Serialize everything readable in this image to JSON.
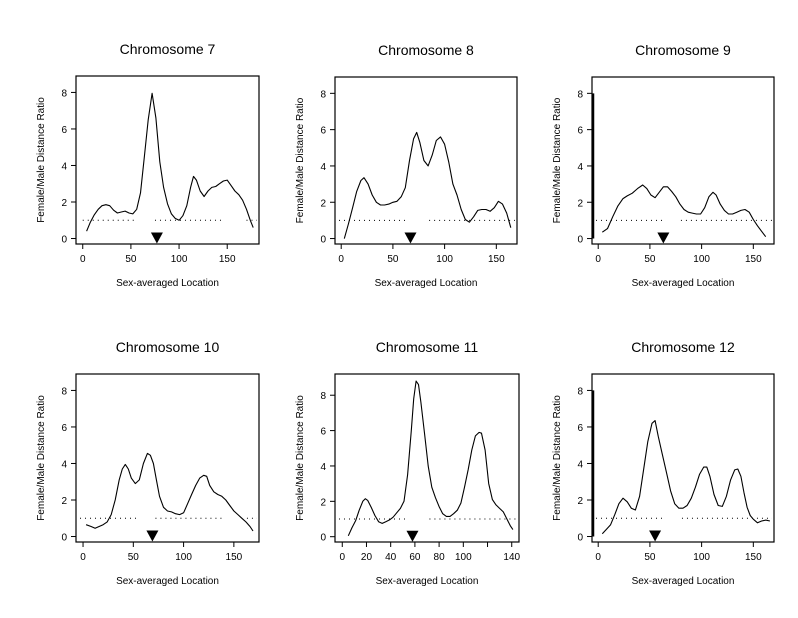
{
  "chart_data": [
    {
      "type": "line",
      "title": "Chromosome 7",
      "xlabel": "Sex-averaged Location",
      "ylabel": "Female/Male Distance Ratio",
      "xlim": [
        -7,
        183
      ],
      "ylim": [
        -0.3,
        8.9
      ],
      "xticks": [
        0,
        50,
        100,
        150
      ],
      "xtick_labels": [
        "0",
        "50",
        "100",
        "150"
      ],
      "yticks": [
        0,
        2,
        4,
        6,
        8
      ],
      "ytick_labels": [
        "0",
        "2",
        "4",
        "6",
        "8"
      ],
      "grid": false,
      "reference_line": {
        "y": 1,
        "style": "dotted",
        "segments": [
          [
            0,
            55
          ],
          [
            75,
            145
          ],
          [
            170,
            183
          ]
        ]
      },
      "marker": {
        "shape": "down-triangle",
        "x": 77
      },
      "x": [
        4,
        8,
        12,
        16,
        20,
        24,
        28,
        32,
        36,
        40,
        44,
        48,
        52,
        56,
        60,
        64,
        68,
        72,
        76,
        80,
        84,
        88,
        92,
        96,
        100,
        104,
        108,
        112,
        115,
        118,
        122,
        126,
        130,
        134,
        138,
        142,
        146,
        150,
        154,
        158,
        162,
        166,
        170,
        174,
        177
      ],
      "y": [
        0.4,
        0.9,
        1.3,
        1.6,
        1.8,
        1.85,
        1.8,
        1.55,
        1.4,
        1.45,
        1.5,
        1.4,
        1.35,
        1.6,
        2.5,
        4.5,
        6.5,
        7.95,
        6.6,
        4.2,
        2.8,
        1.9,
        1.35,
        1.1,
        1.0,
        1.25,
        1.8,
        2.8,
        3.4,
        3.2,
        2.6,
        2.3,
        2.6,
        2.8,
        2.85,
        3.0,
        3.15,
        3.2,
        2.9,
        2.6,
        2.4,
        2.1,
        1.6,
        1.0,
        0.6
      ]
    },
    {
      "type": "line",
      "title": "Chromosome 8",
      "xlabel": "Sex-averaged Location",
      "ylabel": "Female/Male Distance Ratio",
      "xlim": [
        -6,
        170
      ],
      "ylim": [
        -0.3,
        8.9
      ],
      "xticks": [
        0,
        50,
        100,
        150
      ],
      "xtick_labels": [
        "0",
        "50",
        "100",
        "150"
      ],
      "yticks": [
        0,
        2,
        4,
        6,
        8
      ],
      "ytick_labels": [
        "0",
        "2",
        "4",
        "6",
        "8"
      ],
      "grid": false,
      "reference_line": {
        "y": 1,
        "style": "dotted",
        "segments": [
          [
            -6,
            62
          ],
          [
            85,
            170
          ]
        ]
      },
      "marker": {
        "shape": "down-triangle",
        "x": 67
      },
      "x": [
        3,
        7,
        11,
        15,
        19,
        22,
        26,
        30,
        34,
        38,
        42,
        46,
        50,
        54,
        58,
        62,
        66,
        70,
        73,
        76,
        80,
        84,
        88,
        92,
        96,
        100,
        104,
        108,
        112,
        116,
        120,
        124,
        128,
        132,
        136,
        140,
        144,
        148,
        152,
        156,
        160,
        164
      ],
      "y": [
        0.0,
        0.8,
        1.7,
        2.6,
        3.2,
        3.35,
        3.0,
        2.4,
        2.0,
        1.85,
        1.85,
        1.9,
        2.0,
        2.05,
        2.3,
        2.8,
        4.3,
        5.5,
        5.85,
        5.3,
        4.3,
        4.0,
        4.6,
        5.4,
        5.6,
        5.2,
        4.2,
        3.0,
        2.4,
        1.6,
        1.05,
        0.9,
        1.2,
        1.55,
        1.6,
        1.6,
        1.5,
        1.7,
        2.05,
        1.9,
        1.4,
        0.6
      ]
    },
    {
      "type": "line",
      "title": "Chromosome 9",
      "xlabel": "Sex-averaged Location",
      "ylabel": "Female/Male Distance Ratio",
      "xlim": [
        -6,
        170
      ],
      "ylim": [
        -0.3,
        8.9
      ],
      "xticks": [
        0,
        50,
        100,
        150
      ],
      "xtick_labels": [
        "0",
        "50",
        "100",
        "150"
      ],
      "yticks": [
        0,
        2,
        4,
        6,
        8
      ],
      "ytick_labels": [
        "0",
        "2",
        "4",
        "6",
        "8"
      ],
      "grid": false,
      "reference_line": {
        "y": 1,
        "style": "dotted",
        "segments": [
          [
            -6,
            63
          ],
          [
            80,
            170
          ]
        ]
      },
      "marker": {
        "shape": "down-triangle",
        "x": 63
      },
      "x": [
        4,
        9,
        14,
        19,
        24,
        28,
        33,
        38,
        43,
        47,
        51,
        55,
        59,
        63,
        67,
        71,
        75,
        79,
        83,
        87,
        91,
        95,
        99,
        103,
        107,
        111,
        114,
        118,
        122,
        126,
        130,
        134,
        138,
        142,
        146,
        150,
        154,
        158,
        162
      ],
      "y": [
        0.35,
        0.55,
        1.2,
        1.8,
        2.2,
        2.35,
        2.5,
        2.75,
        2.95,
        2.75,
        2.4,
        2.25,
        2.55,
        2.85,
        2.85,
        2.6,
        2.3,
        1.9,
        1.6,
        1.45,
        1.4,
        1.35,
        1.35,
        1.7,
        2.3,
        2.55,
        2.4,
        1.9,
        1.55,
        1.35,
        1.35,
        1.45,
        1.55,
        1.6,
        1.45,
        1.05,
        0.7,
        0.4,
        0.1
      ]
    },
    {
      "type": "line",
      "title": "Chromosome 10",
      "xlabel": "Sex-averaged Location",
      "ylabel": "Female/Male Distance Ratio",
      "xlim": [
        -7,
        175
      ],
      "ylim": [
        -0.3,
        8.9
      ],
      "xticks": [
        0,
        50,
        100,
        150
      ],
      "xtick_labels": [
        "0",
        "50",
        "100",
        "150"
      ],
      "yticks": [
        0,
        2,
        4,
        6,
        8
      ],
      "ytick_labels": [
        "0",
        "2",
        "4",
        "6",
        "8"
      ],
      "grid": false,
      "reference_line": {
        "y": 1,
        "style": "dotted",
        "segments": [
          [
            -7,
            55
          ],
          [
            72,
            140
          ],
          [
            163,
            175
          ]
        ]
      },
      "marker": {
        "shape": "down-triangle",
        "x": 69
      },
      "x": [
        3,
        8,
        12,
        16,
        20,
        24,
        28,
        32,
        36,
        39,
        42,
        45,
        48,
        52,
        56,
        60,
        64,
        67,
        70,
        73,
        76,
        80,
        84,
        88,
        92,
        96,
        100,
        104,
        108,
        112,
        116,
        120,
        123,
        126,
        130,
        134,
        138,
        142,
        146,
        150,
        154,
        158,
        162,
        166,
        169
      ],
      "y": [
        0.65,
        0.55,
        0.45,
        0.55,
        0.65,
        0.8,
        1.2,
        2.0,
        3.1,
        3.7,
        3.95,
        3.7,
        3.2,
        2.9,
        3.1,
        4.0,
        4.55,
        4.45,
        4.0,
        3.1,
        2.2,
        1.6,
        1.4,
        1.35,
        1.25,
        1.2,
        1.3,
        1.8,
        2.3,
        2.8,
        3.2,
        3.35,
        3.3,
        2.8,
        2.45,
        2.3,
        2.2,
        2.0,
        1.7,
        1.4,
        1.2,
        1.0,
        0.8,
        0.55,
        0.3
      ]
    },
    {
      "type": "line",
      "title": "Chromosome 11",
      "xlabel": "Sex-averaged Location",
      "ylabel": "Female/Male Distance Ratio",
      "xlim": [
        -6,
        146
      ],
      "ylim": [
        -0.3,
        9.2
      ],
      "xticks": [
        0,
        20,
        40,
        60,
        80,
        100,
        120,
        140
      ],
      "xtick_labels": [
        "0",
        "20",
        "40",
        "60",
        "80",
        "100",
        "",
        "140"
      ],
      "yticks": [
        0,
        2,
        4,
        6,
        8
      ],
      "ytick_labels": [
        "0",
        "2",
        "4",
        "6",
        "8"
      ],
      "grid": false,
      "reference_line": {
        "y": 1,
        "style": "dotted",
        "segments": [
          [
            -6,
            53
          ],
          [
            72,
            146
          ]
        ]
      },
      "marker": {
        "shape": "down-triangle",
        "x": 58
      },
      "x": [
        5,
        8,
        11,
        14,
        17,
        19,
        21,
        24,
        27,
        30,
        33,
        36,
        39,
        42,
        45,
        48,
        51,
        54,
        57,
        59,
        61,
        63,
        65,
        68,
        71,
        74,
        77,
        80,
        83,
        86,
        89,
        92,
        95,
        98,
        101,
        104,
        107,
        110,
        113,
        115,
        118,
        121,
        124,
        127,
        130,
        133,
        136,
        139,
        141
      ],
      "y": [
        0.05,
        0.5,
        0.9,
        1.5,
        2.0,
        2.15,
        2.05,
        1.65,
        1.2,
        0.85,
        0.75,
        0.85,
        0.95,
        1.1,
        1.35,
        1.6,
        2.0,
        3.5,
        6.0,
        7.8,
        8.8,
        8.6,
        7.6,
        5.8,
        4.0,
        2.8,
        2.2,
        1.7,
        1.3,
        1.15,
        1.15,
        1.3,
        1.5,
        1.9,
        2.8,
        3.8,
        4.9,
        5.7,
        5.9,
        5.85,
        4.9,
        3.0,
        2.1,
        1.8,
        1.6,
        1.4,
        1.0,
        0.6,
        0.4
      ]
    },
    {
      "type": "line",
      "title": "Chromosome 12",
      "xlabel": "Sex-averaged Location",
      "ylabel": "Female/Male Distance Ratio",
      "xlim": [
        -6,
        170
      ],
      "ylim": [
        -0.3,
        8.9
      ],
      "xticks": [
        0,
        50,
        100,
        150
      ],
      "xtick_labels": [
        "0",
        "50",
        "100",
        "150"
      ],
      "yticks": [
        0,
        2,
        4,
        6,
        8
      ],
      "ytick_labels": [
        "0",
        "2",
        "4",
        "6",
        "8"
      ],
      "grid": false,
      "reference_line": {
        "y": 1,
        "style": "dotted",
        "segments": [
          [
            -6,
            64
          ],
          [
            81,
            170
          ]
        ]
      },
      "marker": {
        "shape": "down-triangle",
        "x": 55
      },
      "x": [
        4,
        8,
        12,
        16,
        20,
        24,
        28,
        32,
        36,
        40,
        44,
        48,
        52,
        55,
        58,
        62,
        66,
        70,
        74,
        78,
        82,
        86,
        90,
        94,
        98,
        102,
        105,
        108,
        112,
        116,
        120,
        124,
        128,
        132,
        135,
        138,
        141,
        144,
        147,
        150,
        154,
        158,
        162,
        166
      ],
      "y": [
        0.15,
        0.4,
        0.65,
        1.2,
        1.8,
        2.1,
        1.9,
        1.55,
        1.45,
        2.2,
        3.7,
        5.2,
        6.2,
        6.35,
        5.5,
        4.5,
        3.5,
        2.5,
        1.8,
        1.55,
        1.55,
        1.7,
        2.1,
        2.7,
        3.4,
        3.8,
        3.8,
        3.3,
        2.3,
        1.7,
        1.65,
        2.2,
        3.1,
        3.65,
        3.7,
        3.3,
        2.4,
        1.6,
        1.15,
        0.95,
        0.75,
        0.85,
        0.9,
        0.85
      ]
    }
  ]
}
